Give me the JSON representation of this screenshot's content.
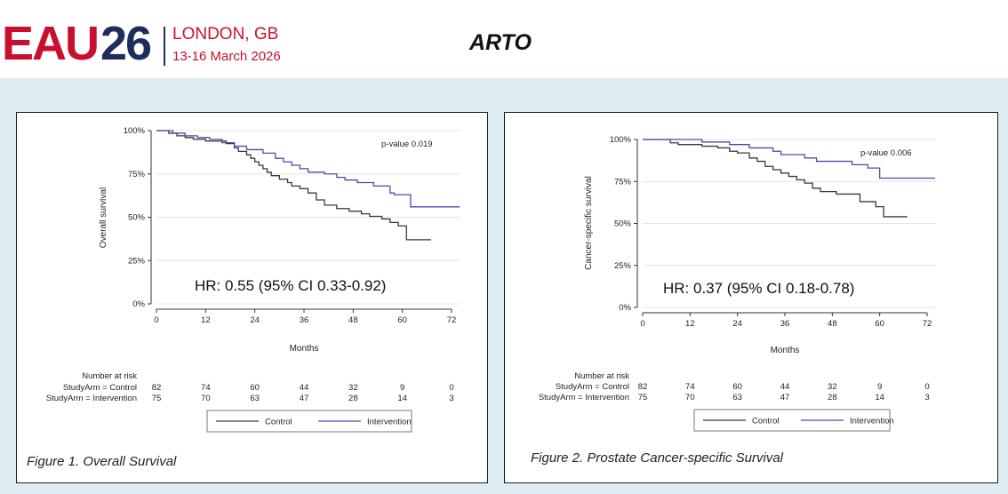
{
  "header": {
    "logo_main": "EAU",
    "logo_year": "26",
    "city": "LONDON, GB",
    "dates": "13-16 March 2026",
    "title": "ARTO"
  },
  "colors": {
    "brand_red": "#c8102e",
    "brand_navy": "#1f2d5c",
    "background_band": "#deedf2",
    "control_line": "#3a3a3a",
    "intervention_line": "#4b4bab"
  },
  "chart_data": [
    {
      "type": "line",
      "caption": "Figure 1. Overall Survival",
      "xlabel": "Months",
      "ylabel": "Overall survival",
      "xlim": [
        0,
        72
      ],
      "ylim": [
        0,
        100
      ],
      "xticks": [
        "0",
        "12",
        "24",
        "36",
        "48",
        "60",
        "72"
      ],
      "yticks": [
        "0%",
        "25%",
        "50%",
        "75%",
        "100%"
      ],
      "annotation": "p-value 0.019",
      "hr_text": "HR: 0.55 (95% CI 0.33-0.92)",
      "legend": [
        "Control",
        "Intervention"
      ],
      "legend_position": "bottom",
      "series": [
        {
          "name": "Control",
          "color": "#3a3a3a",
          "x": [
            0,
            3,
            5,
            7,
            9,
            12,
            15,
            17,
            19,
            20,
            22,
            23,
            24,
            25,
            26,
            27,
            28,
            30,
            32,
            33,
            35,
            37,
            39,
            41,
            44,
            47,
            50,
            52,
            55,
            57,
            59,
            61,
            63,
            67
          ],
          "y": [
            100,
            98.5,
            97,
            96,
            95,
            94,
            94,
            92.5,
            90,
            88,
            86,
            84,
            82,
            80,
            78,
            76,
            74,
            72,
            70,
            68,
            66.5,
            64,
            60,
            57,
            55,
            53.5,
            52,
            50.5,
            49,
            47,
            45,
            37,
            37,
            37
          ]
        },
        {
          "name": "Intervention",
          "color": "#4b4bab",
          "x": [
            0,
            4,
            7,
            10,
            13,
            16,
            19,
            22,
            26,
            29,
            31,
            33,
            35,
            37,
            41,
            44,
            46,
            49,
            53,
            57,
            58,
            62,
            66,
            70,
            74
          ],
          "y": [
            100,
            98.5,
            97,
            96,
            95,
            93,
            91,
            89,
            87,
            84,
            82,
            80,
            78,
            76,
            75,
            73,
            71.5,
            70,
            68,
            64,
            63,
            56,
            56,
            56,
            56
          ]
        }
      ],
      "risk_table": {
        "header": "Number at risk",
        "rows": [
          {
            "label": "StudyArm = Control",
            "values": [
              "82",
              "74",
              "60",
              "44",
              "32",
              "9",
              "0"
            ]
          },
          {
            "label": "StudyArm = Intervention",
            "values": [
              "75",
              "70",
              "63",
              "47",
              "28",
              "14",
              "3"
            ]
          }
        ]
      }
    },
    {
      "type": "line",
      "caption": "Figure 2. Prostate Cancer-specific Survival",
      "xlabel": "Months",
      "ylabel": "Cancer-specific survival",
      "xlim": [
        0,
        72
      ],
      "ylim": [
        0,
        100
      ],
      "xticks": [
        "0",
        "12",
        "24",
        "36",
        "48",
        "60",
        "72"
      ],
      "yticks": [
        "0%",
        "25%",
        "50%",
        "75%",
        "100%"
      ],
      "annotation": "p-value 0.006",
      "hr_text": "HR: 0.37 (95% CI 0.18-0.78)",
      "legend": [
        "Control",
        "Intervention"
      ],
      "legend_position": "bottom",
      "series": [
        {
          "name": "Control",
          "color": "#3a3a3a",
          "x": [
            0,
            7,
            9,
            12,
            15,
            19,
            22,
            24,
            27,
            29,
            31,
            33,
            35,
            37,
            39,
            41,
            43,
            45,
            49,
            53,
            55,
            58,
            59,
            61,
            67
          ],
          "y": [
            100,
            98,
            97,
            97,
            96,
            95,
            93,
            92,
            89,
            87,
            84,
            82,
            80,
            78,
            76,
            74,
            71,
            69,
            67.5,
            67.5,
            63,
            63,
            60,
            54,
            54
          ]
        },
        {
          "name": "Intervention",
          "color": "#4b4bab",
          "x": [
            0,
            8,
            15,
            17,
            22,
            27,
            33,
            35,
            41,
            44,
            48,
            53,
            57,
            60,
            62,
            66,
            74
          ],
          "y": [
            100,
            100,
            98.5,
            98.5,
            97,
            95,
            93,
            91,
            89,
            87,
            87,
            85,
            83,
            77,
            77,
            77,
            77
          ]
        }
      ],
      "risk_table": {
        "header": "Number at risk",
        "rows": [
          {
            "label": "StudyArm = Control",
            "values": [
              "82",
              "74",
              "60",
              "44",
              "32",
              "9",
              "0"
            ]
          },
          {
            "label": "StudyArm = Intervention",
            "values": [
              "75",
              "70",
              "63",
              "47",
              "28",
              "14",
              "3"
            ]
          }
        ]
      }
    }
  ]
}
